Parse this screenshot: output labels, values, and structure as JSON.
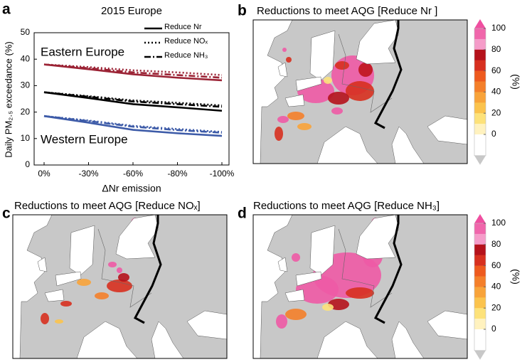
{
  "chart_data": [
    {
      "type": "line",
      "panel_label": "a",
      "title": "2015 Europe",
      "x_label": "ΔNr emission",
      "y_label": "Daily PM₂.₅ exceedance (%)",
      "categories": [
        "0%",
        "-30%",
        "-60%",
        "-80%",
        "-100%"
      ],
      "ylim": [
        0,
        50
      ],
      "yticks": [
        0,
        10,
        20,
        30,
        40,
        50
      ],
      "legend": [
        {
          "name": "Reduce Nr",
          "dash": "solid"
        },
        {
          "name": "Reduce NOₓ",
          "dash": "dotted"
        },
        {
          "name": "Reduce NH₃",
          "dash": "dashdot"
        }
      ],
      "annotations": [
        {
          "text": "Eastern Europe",
          "color": "#9b2335"
        },
        {
          "text": "Western Europe",
          "color": "#355a8f"
        }
      ],
      "series": [
        {
          "color": "#9b2335",
          "dash": "solid",
          "values": [
            38,
            36.2,
            34.3,
            33,
            32
          ]
        },
        {
          "color": "#9b2335",
          "dash": "dotted",
          "values": [
            38,
            37,
            35.8,
            35,
            34
          ]
        },
        {
          "color": "#9b2335",
          "dash": "dashdot",
          "values": [
            38,
            36.6,
            35,
            34,
            33
          ]
        },
        {
          "color": "#000000",
          "dash": "solid",
          "values": [
            27.5,
            25.3,
            23,
            21.8,
            20.5
          ]
        },
        {
          "color": "#000000",
          "dash": "dotted",
          "values": [
            27.5,
            26,
            24.4,
            23.5,
            22.5
          ]
        },
        {
          "color": "#000000",
          "dash": "dashdot",
          "values": [
            27.5,
            25.8,
            24,
            23,
            22
          ]
        },
        {
          "color": "#3d5ba8",
          "dash": "solid",
          "values": [
            18.5,
            16,
            13.3,
            12,
            11
          ]
        },
        {
          "color": "#3d5ba8",
          "dash": "dotted",
          "values": [
            18.5,
            16.8,
            14.8,
            13.6,
            12.5
          ]
        },
        {
          "color": "#3d5ba8",
          "dash": "dashdot",
          "values": [
            18.5,
            16.6,
            14.5,
            13.2,
            12.2
          ]
        }
      ]
    },
    {
      "type": "map",
      "panel_label": "b",
      "title": "Reductions to meet AQG [Reduce Nr ]",
      "colorbar": {
        "label": "(%)",
        "ticks": [
          100,
          80,
          60,
          40,
          20,
          0
        ],
        "lim": [
          -20,
          100
        ],
        "over_color": "#ef4fa0",
        "under_color": "#c8c8c8",
        "colors": [
          "#f066ab",
          "#f59cc9",
          "#b5121b",
          "#d7301f",
          "#ee5a1e",
          "#f47f2a",
          "#f8a33a",
          "#fbc34d",
          "#fde27a",
          "#fff2bf",
          "#ffffff",
          "#ffffff"
        ]
      }
    },
    {
      "type": "map",
      "panel_label": "c",
      "title": "Reductions to meet AQG [Reduce NOₓ]"
    },
    {
      "type": "map",
      "panel_label": "d",
      "title": "Reductions to meet AQG [Reduce NH₃]",
      "colorbar": {
        "label": "(%)",
        "ticks": [
          100,
          80,
          60,
          40,
          20,
          0
        ],
        "lim": [
          -20,
          100
        ],
        "over_color": "#ef4fa0",
        "under_color": "#c8c8c8",
        "colors": [
          "#f066ab",
          "#f59cc9",
          "#b5121b",
          "#d7301f",
          "#ee5a1e",
          "#f47f2a",
          "#f8a33a",
          "#fbc34d",
          "#fde27a",
          "#fff2bf",
          "#ffffff",
          "#ffffff"
        ]
      }
    }
  ]
}
